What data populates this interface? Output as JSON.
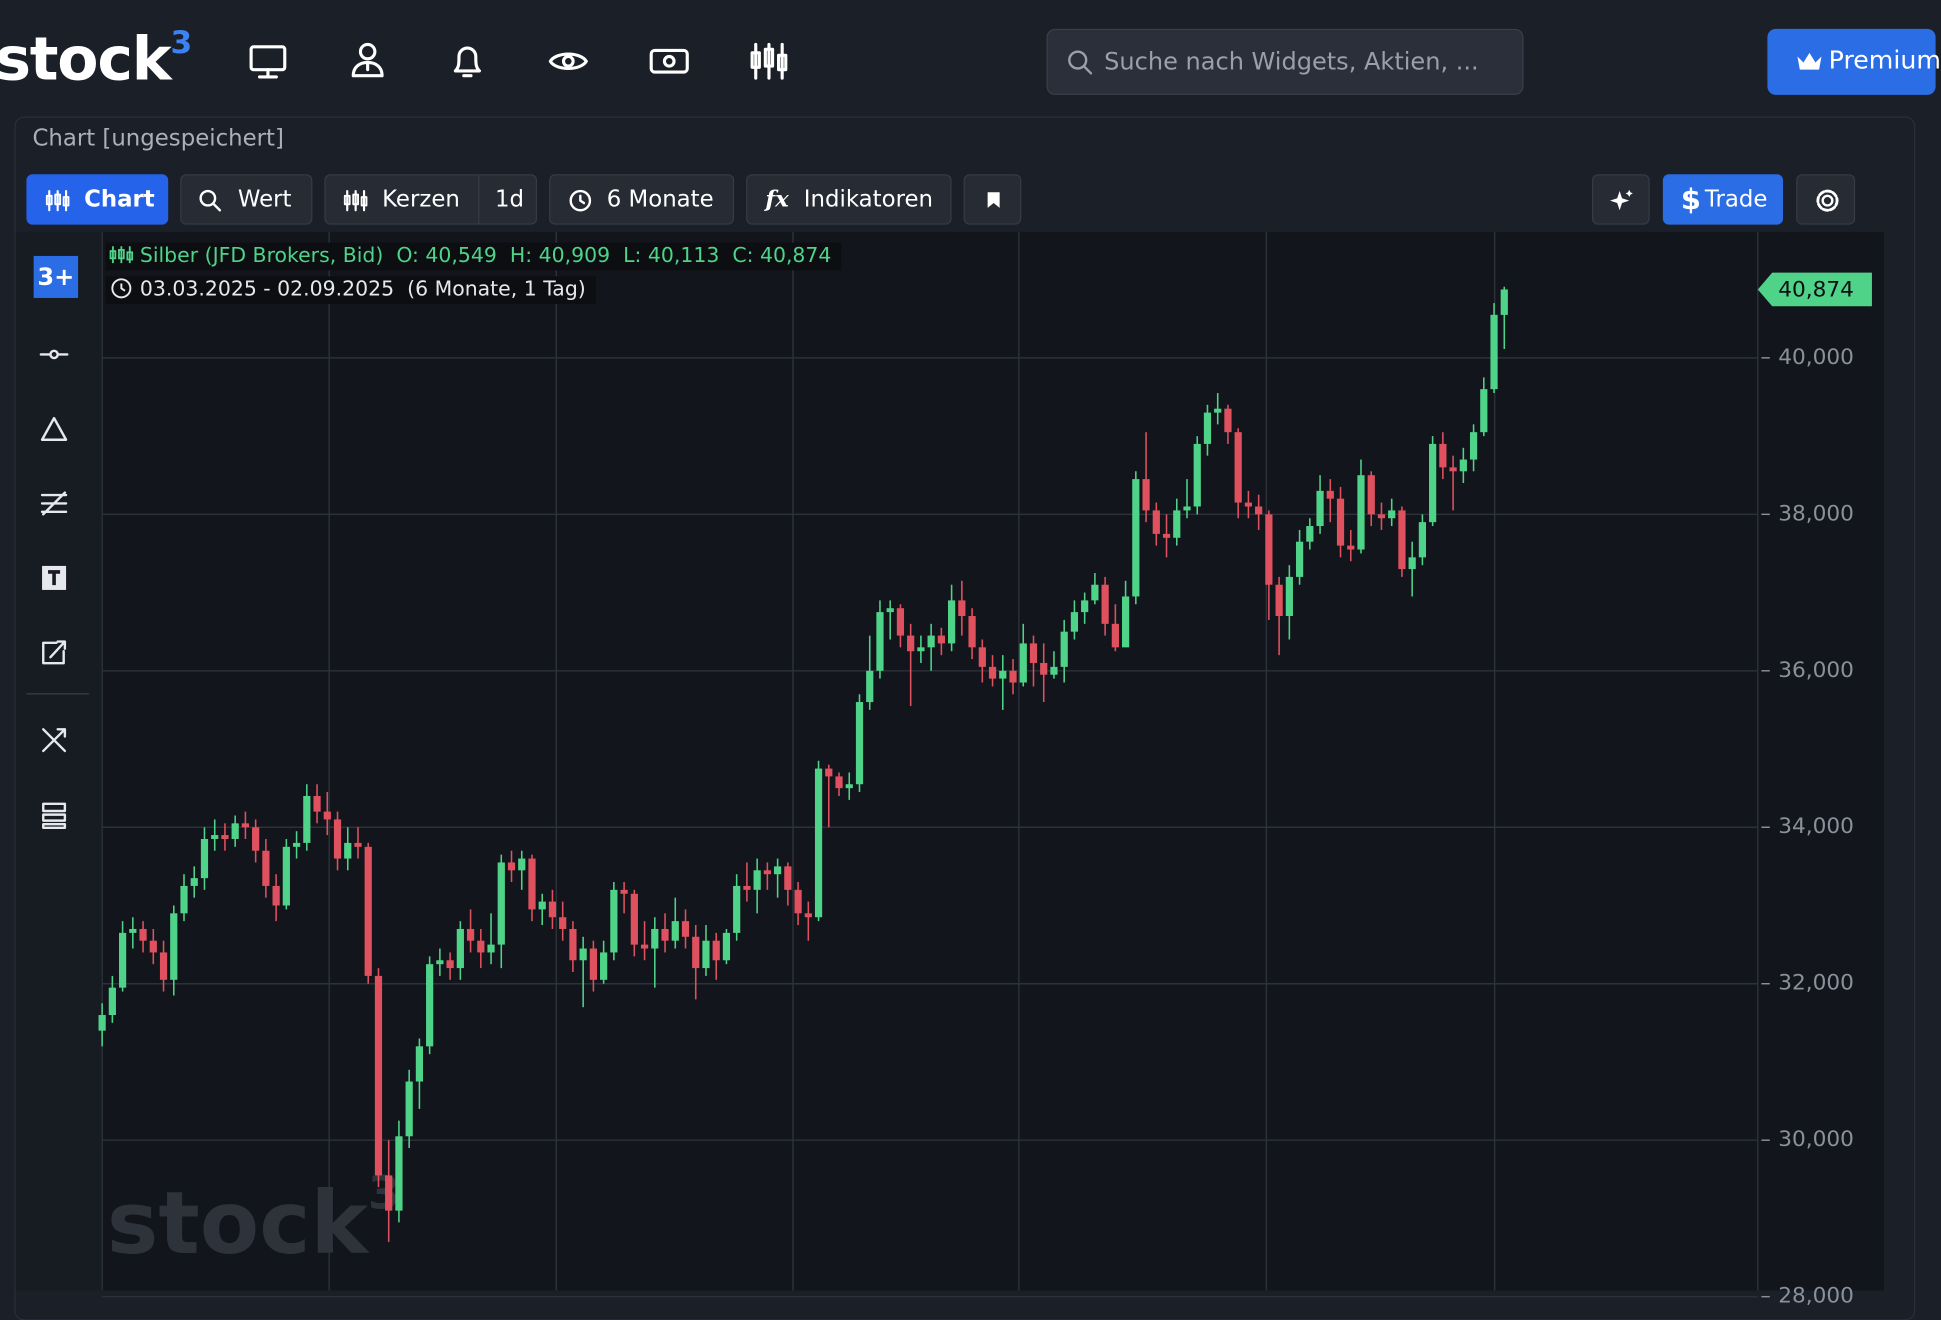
{
  "header": {
    "logo": "stock",
    "logo_sup": "3",
    "search_placeholder": "Suche nach Widgets, Aktien, ...",
    "premium": "Premium"
  },
  "panel": {
    "title": "Chart [ungespeichert]",
    "sidebar_logo": "3+",
    "toolbar": {
      "chart": "Chart",
      "wert": "Wert",
      "kerzen": "Kerzen",
      "interval": "1d",
      "range": "6 Monate",
      "indicators": "Indikatoren",
      "trade": "Trade",
      "trade_symbol": "$"
    },
    "watermark": "stock",
    "watermark_sup": "3"
  },
  "chart_data": {
    "type": "candlestick",
    "date_range": "03.03.2025 - 02.09.2025",
    "period": "(6 Monate, 1 Tag)",
    "legend": {
      "open": "O: 40,549",
      "high": "H: 40,909",
      "low": "L: 40,113",
      "close": "C: 40,874"
    },
    "last_price_label": "40,874",
    "up_color": "#4fd389",
    "down_color": "#e0515f",
    "grid": true,
    "ylim": [
      28.08,
      41.61
    ],
    "yticks": [
      {
        "value": 28,
        "label": "28,000"
      },
      {
        "value": 30,
        "label": "30,000"
      },
      {
        "value": 32,
        "label": "32,000"
      },
      {
        "value": 34,
        "label": "34,000"
      },
      {
        "value": 36,
        "label": "36,000"
      },
      {
        "value": 38,
        "label": "38,000"
      },
      {
        "value": 40,
        "label": "40,000"
      }
    ],
    "series": [
      {
        "name": "Silber (JFD Brokers, Bid)",
        "ohlc": [
          [
            31.4,
            31.75,
            31.2,
            31.6
          ],
          [
            31.6,
            32.1,
            31.5,
            31.95
          ],
          [
            31.95,
            32.8,
            31.9,
            32.65
          ],
          [
            32.65,
            32.85,
            32.45,
            32.7
          ],
          [
            32.7,
            32.8,
            32.4,
            32.55
          ],
          [
            32.55,
            32.7,
            32.25,
            32.4
          ],
          [
            32.4,
            32.55,
            31.9,
            32.05
          ],
          [
            32.05,
            33,
            31.85,
            32.9
          ],
          [
            32.9,
            33.4,
            32.8,
            33.25
          ],
          [
            33.25,
            33.5,
            33.1,
            33.35
          ],
          [
            33.35,
            34,
            33.2,
            33.85
          ],
          [
            33.85,
            34.1,
            33.7,
            33.9
          ],
          [
            33.9,
            34.05,
            33.7,
            33.85
          ],
          [
            33.85,
            34.15,
            33.75,
            34.05
          ],
          [
            34.05,
            34.2,
            33.85,
            34
          ],
          [
            34,
            34.1,
            33.55,
            33.7
          ],
          [
            33.7,
            33.85,
            33.1,
            33.25
          ],
          [
            33.25,
            33.4,
            32.8,
            33
          ],
          [
            33,
            33.85,
            32.95,
            33.75
          ],
          [
            33.75,
            33.95,
            33.6,
            33.8
          ],
          [
            33.8,
            34.55,
            33.7,
            34.4
          ],
          [
            34.4,
            34.55,
            34.05,
            34.2
          ],
          [
            34.2,
            34.45,
            33.9,
            34.1
          ],
          [
            34.1,
            34.2,
            33.45,
            33.6
          ],
          [
            33.6,
            34,
            33.45,
            33.8
          ],
          [
            33.8,
            34,
            33.6,
            33.75
          ],
          [
            33.75,
            33.8,
            32,
            32.1
          ],
          [
            32.1,
            32.2,
            29.4,
            29.55
          ],
          [
            29.55,
            30,
            28.7,
            29.1
          ],
          [
            29.1,
            30.25,
            28.95,
            30.05
          ],
          [
            30.05,
            30.9,
            29.9,
            30.75
          ],
          [
            30.75,
            31.3,
            30.4,
            31.2
          ],
          [
            31.2,
            32.35,
            31.1,
            32.25
          ],
          [
            32.25,
            32.45,
            32.1,
            32.3
          ],
          [
            32.3,
            32.4,
            32.05,
            32.2
          ],
          [
            32.2,
            32.8,
            32.05,
            32.7
          ],
          [
            32.7,
            32.95,
            32.4,
            32.55
          ],
          [
            32.55,
            32.7,
            32.2,
            32.4
          ],
          [
            32.4,
            32.9,
            32.25,
            32.5
          ],
          [
            32.5,
            33.65,
            32.2,
            33.55
          ],
          [
            33.55,
            33.7,
            33.3,
            33.45
          ],
          [
            33.45,
            33.7,
            33.2,
            33.6
          ],
          [
            33.6,
            33.65,
            32.8,
            32.95
          ],
          [
            32.95,
            33.15,
            32.75,
            33.05
          ],
          [
            33.05,
            33.2,
            32.7,
            32.85
          ],
          [
            32.85,
            33.05,
            32.55,
            32.7
          ],
          [
            32.7,
            32.8,
            32.15,
            32.3
          ],
          [
            32.3,
            32.6,
            31.7,
            32.45
          ],
          [
            32.45,
            32.55,
            31.9,
            32.05
          ],
          [
            32.05,
            32.55,
            32,
            32.4
          ],
          [
            32.4,
            33.3,
            32.3,
            33.2
          ],
          [
            33.2,
            33.3,
            32.9,
            33.15
          ],
          [
            33.15,
            33.2,
            32.35,
            32.5
          ],
          [
            32.5,
            32.8,
            32.3,
            32.45
          ],
          [
            32.45,
            32.85,
            31.95,
            32.7
          ],
          [
            32.7,
            32.9,
            32.4,
            32.55
          ],
          [
            32.55,
            33.1,
            32.45,
            32.8
          ],
          [
            32.8,
            32.95,
            32.45,
            32.6
          ],
          [
            32.6,
            32.75,
            31.8,
            32.2
          ],
          [
            32.2,
            32.75,
            32.1,
            32.55
          ],
          [
            32.55,
            32.65,
            32.05,
            32.3
          ],
          [
            32.3,
            32.7,
            32.25,
            32.65
          ],
          [
            32.65,
            33.4,
            32.55,
            33.25
          ],
          [
            33.25,
            33.55,
            33.05,
            33.2
          ],
          [
            33.2,
            33.6,
            32.9,
            33.45
          ],
          [
            33.45,
            33.55,
            33.2,
            33.4
          ],
          [
            33.4,
            33.6,
            33.1,
            33.5
          ],
          [
            33.5,
            33.55,
            33,
            33.2
          ],
          [
            33.2,
            33.3,
            32.75,
            32.9
          ],
          [
            32.9,
            33.05,
            32.55,
            32.85
          ],
          [
            32.85,
            34.85,
            32.8,
            34.75
          ],
          [
            34.75,
            34.8,
            34,
            34.65
          ],
          [
            34.65,
            34.7,
            34.4,
            34.5
          ],
          [
            34.5,
            34.7,
            34.35,
            34.55
          ],
          [
            34.55,
            35.7,
            34.45,
            35.6
          ],
          [
            35.6,
            36.45,
            35.5,
            36
          ],
          [
            36,
            36.9,
            35.9,
            36.75
          ],
          [
            36.75,
            36.9,
            36.4,
            36.8
          ],
          [
            36.8,
            36.85,
            36.3,
            36.45
          ],
          [
            36.45,
            36.6,
            35.55,
            36.25
          ],
          [
            36.25,
            36.45,
            36.1,
            36.3
          ],
          [
            36.3,
            36.6,
            36,
            36.45
          ],
          [
            36.45,
            36.55,
            36.2,
            36.35
          ],
          [
            36.35,
            37.1,
            36.25,
            36.9
          ],
          [
            36.9,
            37.15,
            36.45,
            36.7
          ],
          [
            36.7,
            36.8,
            36.15,
            36.3
          ],
          [
            36.3,
            36.4,
            35.85,
            36.05
          ],
          [
            36.05,
            36.2,
            35.8,
            35.9
          ],
          [
            35.9,
            36.2,
            35.5,
            36
          ],
          [
            36,
            36.15,
            35.7,
            35.85
          ],
          [
            35.85,
            36.6,
            35.8,
            36.35
          ],
          [
            36.35,
            36.45,
            35.8,
            36.1
          ],
          [
            36.1,
            36.35,
            35.6,
            35.95
          ],
          [
            35.95,
            36.25,
            35.9,
            36.05
          ],
          [
            36.05,
            36.65,
            35.85,
            36.5
          ],
          [
            36.5,
            36.9,
            36.4,
            36.75
          ],
          [
            36.75,
            37,
            36.6,
            36.9
          ],
          [
            36.9,
            37.25,
            36.85,
            37.1
          ],
          [
            37.1,
            37.2,
            36.45,
            36.6
          ],
          [
            36.6,
            36.85,
            36.25,
            36.3
          ],
          [
            36.3,
            37.15,
            36.3,
            36.95
          ],
          [
            36.95,
            38.55,
            36.85,
            38.45
          ],
          [
            38.45,
            39.05,
            37.9,
            38.05
          ],
          [
            38.05,
            38.15,
            37.6,
            37.75
          ],
          [
            37.75,
            38,
            37.45,
            37.7
          ],
          [
            37.7,
            38.2,
            37.6,
            38.05
          ],
          [
            38.05,
            38.45,
            37.95,
            38.1
          ],
          [
            38.1,
            39,
            38,
            38.9
          ],
          [
            38.9,
            39.4,
            38.75,
            39.3
          ],
          [
            39.3,
            39.55,
            39.15,
            39.35
          ],
          [
            39.35,
            39.4,
            38.9,
            39.05
          ],
          [
            39.05,
            39.1,
            37.95,
            38.15
          ],
          [
            38.15,
            38.3,
            37.95,
            38.1
          ],
          [
            38.1,
            38.25,
            37.8,
            38
          ],
          [
            38,
            38.05,
            36.65,
            37.1
          ],
          [
            37.1,
            37.2,
            36.2,
            36.7
          ],
          [
            36.7,
            37.35,
            36.4,
            37.2
          ],
          [
            37.2,
            37.8,
            37.1,
            37.65
          ],
          [
            37.65,
            37.95,
            37.55,
            37.85
          ],
          [
            37.85,
            38.5,
            37.75,
            38.3
          ],
          [
            38.3,
            38.45,
            37.9,
            38.2
          ],
          [
            38.2,
            38.35,
            37.45,
            37.6
          ],
          [
            37.6,
            37.8,
            37.4,
            37.55
          ],
          [
            37.55,
            38.7,
            37.5,
            38.5
          ],
          [
            38.5,
            38.55,
            37.85,
            38
          ],
          [
            38,
            38.15,
            37.8,
            37.95
          ],
          [
            37.95,
            38.2,
            37.85,
            38.05
          ],
          [
            38.05,
            38.1,
            37.2,
            37.3
          ],
          [
            37.3,
            37.65,
            36.95,
            37.45
          ],
          [
            37.45,
            38,
            37.35,
            37.9
          ],
          [
            37.9,
            39,
            37.85,
            38.9
          ],
          [
            38.9,
            39.05,
            38.45,
            38.6
          ],
          [
            38.6,
            38.75,
            38.05,
            38.55
          ],
          [
            38.55,
            38.85,
            38.4,
            38.7
          ],
          [
            38.7,
            39.15,
            38.55,
            39.05
          ],
          [
            39.05,
            39.75,
            39,
            39.6
          ],
          [
            39.6,
            40.7,
            39.55,
            40.55
          ],
          [
            40.549,
            40.909,
            40.113,
            40.874
          ]
        ]
      }
    ]
  }
}
